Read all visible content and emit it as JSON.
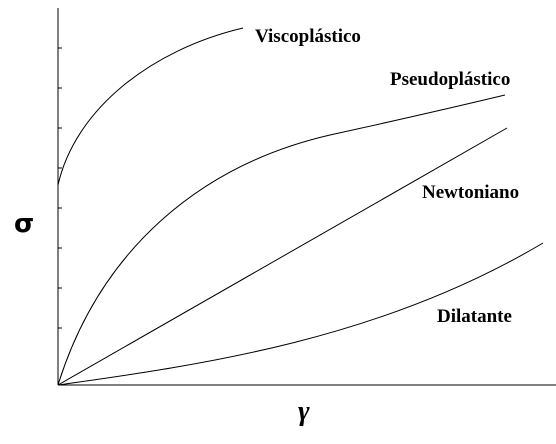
{
  "curves": {
    "viscoplastic": "Viscoplástico",
    "pseudoplastic": "Pseudoplástico",
    "newtonian": "Newtoniano",
    "dilatant": "Dilatante"
  },
  "axes": {
    "y": "σ",
    "x": "γ"
  }
}
